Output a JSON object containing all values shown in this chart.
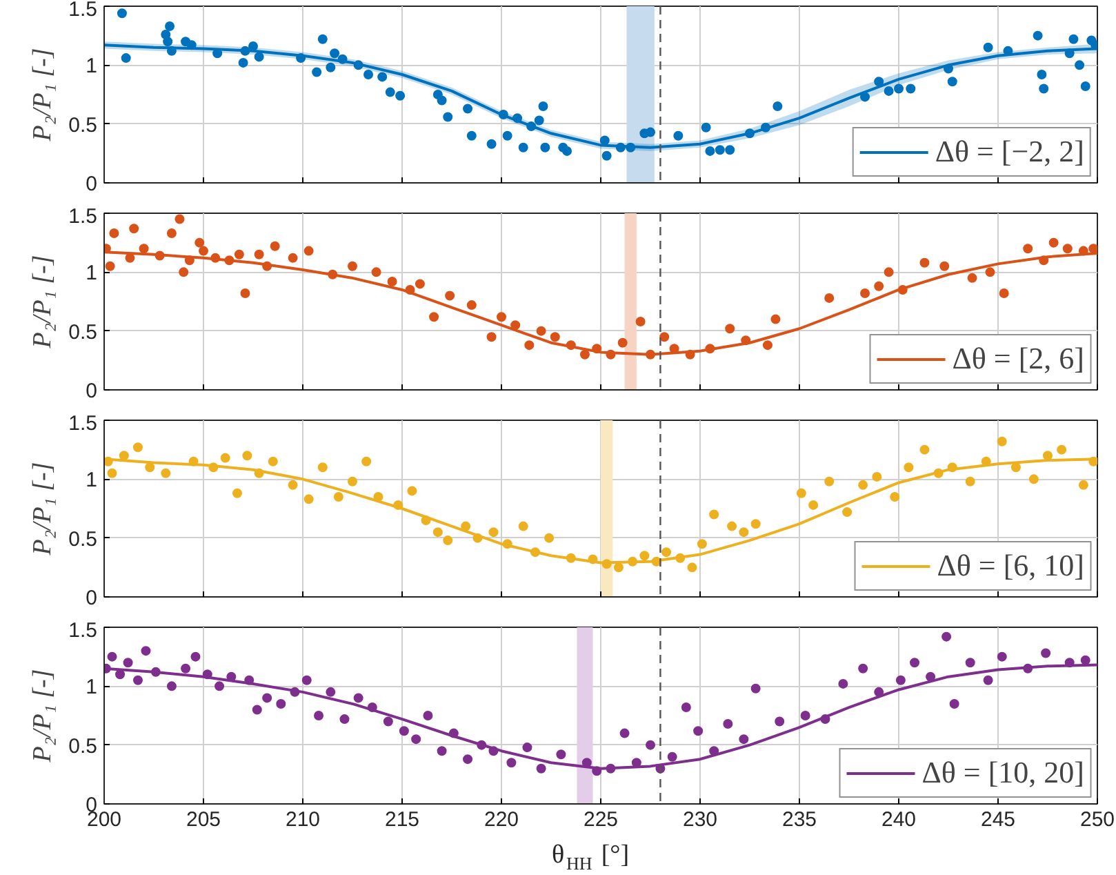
{
  "chart_data": [
    {
      "type": "scatter",
      "ylabel": "P₂/P₁ [-]",
      "xlim": [
        200,
        250
      ],
      "ylim": [
        0,
        1.5
      ],
      "xticks": [
        200,
        205,
        210,
        215,
        220,
        225,
        230,
        235,
        240,
        245,
        250
      ],
      "yticks": [
        0,
        0.5,
        1,
        1.5
      ],
      "grid": true,
      "legend": "bottom right",
      "tick_labels": "y",
      "marker": "circle",
      "series": [
        {
          "color": "#0072bd",
          "x": [
            200.9,
            201.1,
            203.1,
            203.2,
            203.3,
            203.4,
            204.1,
            204.4,
            205.7,
            207,
            207.1,
            207.5,
            207.8,
            209.9,
            210.7,
            211,
            211.4,
            211.6,
            212,
            212.8,
            213.3,
            214,
            214.4,
            214.9,
            216.8,
            217,
            217.3,
            218.3,
            218.5,
            219.5,
            220.1,
            220.3,
            220.8,
            221.1,
            221.5,
            221.9,
            222.1,
            222.2,
            223.1,
            223.3,
            225.2,
            225.3,
            226,
            226.5,
            227.2,
            227.5,
            228.9,
            230.3,
            230.5,
            231,
            231.5,
            232.5,
            233.3,
            233.9,
            238.3,
            239,
            239.5,
            240,
            240.6,
            242.5,
            242.7,
            244.5,
            245.5,
            247,
            247.2,
            247.3,
            248.6,
            248.8,
            249.1,
            249.4,
            249.7,
            249.9
          ],
          "values": [
            1.44,
            1.06,
            1.26,
            1.2,
            1.33,
            1.12,
            1.2,
            1.17,
            1.1,
            1.02,
            1.12,
            1.16,
            1.07,
            1.06,
            0.94,
            1.22,
            0.98,
            1.1,
            1.05,
            1,
            0.92,
            0.9,
            0.77,
            0.74,
            0.75,
            0.7,
            0.56,
            0.63,
            0.4,
            0.33,
            0.58,
            0.4,
            0.55,
            0.3,
            0.48,
            0.53,
            0.65,
            0.3,
            0.3,
            0.27,
            0.36,
            0.23,
            0.3,
            0.3,
            0.42,
            0.43,
            0.4,
            0.47,
            0.27,
            0.28,
            0.28,
            0.42,
            0.47,
            0.65,
            0.73,
            0.86,
            0.78,
            0.8,
            0.8,
            0.97,
            0.86,
            1.15,
            1.12,
            1.25,
            0.92,
            0.8,
            1.1,
            1.22,
            1,
            0.82,
            1.21,
            1.17
          ]
        },
        {
          "type": "line",
          "name": "Δθ = [−2, 2]",
          "color": "#0072bd",
          "marker": "none",
          "x": [
            200,
            202.5,
            205,
            207.5,
            210,
            212.5,
            215,
            217.5,
            220,
            222.5,
            225,
            227.5,
            230,
            232.5,
            235,
            237.5,
            240,
            242.5,
            245,
            247.5,
            250
          ],
          "values": [
            1.17,
            1.15,
            1.14,
            1.12,
            1.08,
            1.02,
            0.92,
            0.78,
            0.58,
            0.42,
            0.32,
            0.3,
            0.33,
            0.42,
            0.55,
            0.72,
            0.88,
            1,
            1.08,
            1.12,
            1.14
          ],
          "lower": [
            1.14,
            1.12,
            1.11,
            1.09,
            1.05,
            0.99,
            0.89,
            0.75,
            0.55,
            0.39,
            0.29,
            0.27,
            0.3,
            0.38,
            0.49,
            0.65,
            0.83,
            0.96,
            1.05,
            1.09,
            1.1
          ],
          "upper": [
            1.2,
            1.18,
            1.17,
            1.15,
            1.11,
            1.05,
            0.95,
            0.81,
            0.61,
            0.45,
            0.35,
            0.33,
            0.36,
            0.46,
            0.61,
            0.79,
            0.93,
            1.04,
            1.11,
            1.15,
            1.18
          ]
        }
      ],
      "ref_lines": [
        {
          "axis": "x",
          "value": 228,
          "color": "#555555",
          "line_style": "dashed"
        }
      ],
      "bands": [
        {
          "axis": "x",
          "from": 226.3,
          "to": 227.7,
          "color": "#c6dcee"
        }
      ]
    },
    {
      "type": "scatter",
      "ylabel": "P₂/P₁ [-]",
      "xlim": [
        200,
        250
      ],
      "ylim": [
        0,
        1.5
      ],
      "xticks": [
        200,
        205,
        210,
        215,
        220,
        225,
        230,
        235,
        240,
        245,
        250
      ],
      "yticks": [
        0,
        0.5,
        1,
        1.5
      ],
      "grid": true,
      "legend": "bottom right",
      "tick_labels": "y",
      "marker": "circle",
      "series": [
        {
          "color": "#d95319",
          "x": [
            200.1,
            200.3,
            200.5,
            201.3,
            201.5,
            202,
            202.8,
            203.4,
            203.8,
            204,
            204.3,
            204.8,
            205,
            205.6,
            206.3,
            206.8,
            207.1,
            207.8,
            208.2,
            208.6,
            209.5,
            210.3,
            211.5,
            212.5,
            213.7,
            214.5,
            215.4,
            215.9,
            216.6,
            217.4,
            218.5,
            219.5,
            220,
            220.7,
            221.4,
            222,
            222.7,
            223.5,
            224.2,
            224.8,
            225.5,
            226.1,
            227,
            227.5,
            228.2,
            228.7,
            229.5,
            230.5,
            231.5,
            232.3,
            233.4,
            233.8,
            236.5,
            238.3,
            239,
            239.5,
            240.2,
            241.3,
            242.3,
            243.7,
            244.6,
            245.3,
            246.5,
            247.3,
            247.8,
            248.5,
            249.3,
            249.8
          ],
          "values": [
            1.2,
            1.05,
            1.33,
            1.12,
            1.37,
            1.2,
            1.14,
            1.33,
            1.45,
            1,
            1.1,
            1.25,
            1.18,
            1.12,
            1.1,
            1.15,
            0.82,
            1.15,
            1.05,
            1.22,
            1.12,
            1.18,
            0.98,
            1.05,
            1,
            0.92,
            0.85,
            0.9,
            0.62,
            0.8,
            0.72,
            0.45,
            0.62,
            0.55,
            0.38,
            0.5,
            0.45,
            0.38,
            0.3,
            0.35,
            0.3,
            0.4,
            0.58,
            0.3,
            0.45,
            0.35,
            0.3,
            0.35,
            0.52,
            0.42,
            0.38,
            0.6,
            0.78,
            0.82,
            0.88,
            1,
            0.85,
            1.08,
            1.05,
            0.95,
            1,
            0.82,
            1.2,
            1.1,
            1.25,
            1.2,
            1.18,
            1.2
          ]
        },
        {
          "type": "line",
          "name": "Δθ = [2, 6]",
          "color": "#d95319",
          "marker": "none",
          "x": [
            200,
            202.5,
            205,
            207.5,
            210,
            212.5,
            215,
            217.5,
            220,
            222.5,
            225,
            227.5,
            230,
            232.5,
            235,
            237.5,
            240,
            242.5,
            245,
            247.5,
            250
          ],
          "values": [
            1.17,
            1.15,
            1.12,
            1.08,
            1.02,
            0.95,
            0.85,
            0.7,
            0.55,
            0.4,
            0.32,
            0.3,
            0.33,
            0.4,
            0.52,
            0.68,
            0.85,
            0.98,
            1.07,
            1.13,
            1.16
          ]
        }
      ],
      "ref_lines": [
        {
          "axis": "x",
          "value": 228,
          "color": "#555555",
          "line_style": "dashed"
        }
      ],
      "bands": [
        {
          "axis": "x",
          "from": 226.2,
          "to": 226.8,
          "color": "#f6d3c3"
        }
      ]
    },
    {
      "type": "scatter",
      "ylabel": "P₂/P₁ [-]",
      "xlim": [
        200,
        250
      ],
      "ylim": [
        0,
        1.5
      ],
      "xticks": [
        200,
        205,
        210,
        215,
        220,
        225,
        230,
        235,
        240,
        245,
        250
      ],
      "yticks": [
        0,
        0.5,
        1,
        1.5
      ],
      "grid": true,
      "legend": "bottom right",
      "tick_labels": "y",
      "marker": "circle",
      "series": [
        {
          "color": "#edb120",
          "x": [
            200.2,
            200.4,
            201,
            201.7,
            202.3,
            203.1,
            204.5,
            205.5,
            206.1,
            206.7,
            207.2,
            207.8,
            208.5,
            209.5,
            210.3,
            211,
            211.8,
            212.5,
            213.2,
            213.8,
            214.8,
            215.5,
            216.2,
            216.8,
            217.3,
            218.2,
            218.8,
            219.6,
            220.3,
            221.1,
            221.7,
            222.4,
            223.5,
            224.6,
            225.3,
            225.9,
            226.6,
            227.2,
            227.8,
            228.3,
            229,
            229.6,
            230.1,
            230.7,
            231.6,
            232.2,
            232.8,
            235.1,
            235.7,
            236.5,
            237.4,
            238.2,
            238.9,
            239.8,
            240.5,
            241.3,
            242,
            242.7,
            243.6,
            244.4,
            245.2,
            245.9,
            246.8,
            247.5,
            248.2,
            249.3,
            249.8
          ],
          "values": [
            1.15,
            1.05,
            1.2,
            1.27,
            1.1,
            1.05,
            1.15,
            1.1,
            1.18,
            0.88,
            1.2,
            1.05,
            1.15,
            0.95,
            0.83,
            1.1,
            0.85,
            0.98,
            1.15,
            0.85,
            0.78,
            0.9,
            0.65,
            0.55,
            0.48,
            0.6,
            0.5,
            0.55,
            0.45,
            0.6,
            0.38,
            0.5,
            0.33,
            0.32,
            0.28,
            0.25,
            0.3,
            0.35,
            0.3,
            0.38,
            0.33,
            0.25,
            0.45,
            0.7,
            0.6,
            0.55,
            0.62,
            0.88,
            0.78,
            0.98,
            0.72,
            0.95,
            1.02,
            0.85,
            1.1,
            1.25,
            1.05,
            1.1,
            0.98,
            1.15,
            1.32,
            1.1,
            1,
            1.2,
            1.25,
            0.95,
            1.15
          ]
        },
        {
          "type": "line",
          "name": "Δθ = [6, 10]",
          "color": "#edb120",
          "marker": "none",
          "x": [
            200,
            202.5,
            205,
            207.5,
            210,
            212.5,
            215,
            217.5,
            220,
            222.5,
            225,
            227.5,
            230,
            232.5,
            235,
            237.5,
            240,
            242.5,
            245,
            247.5,
            250
          ],
          "values": [
            1.17,
            1.14,
            1.12,
            1.08,
            1,
            0.88,
            0.75,
            0.6,
            0.45,
            0.35,
            0.29,
            0.3,
            0.36,
            0.48,
            0.62,
            0.8,
            0.97,
            1.08,
            1.13,
            1.16,
            1.17
          ]
        }
      ],
      "ref_lines": [
        {
          "axis": "x",
          "value": 228,
          "color": "#555555",
          "line_style": "dashed"
        }
      ],
      "bands": [
        {
          "axis": "x",
          "from": 225,
          "to": 225.6,
          "color": "#fae8c0"
        }
      ]
    },
    {
      "type": "scatter",
      "ylabel": "P₂/P₁ [-]",
      "xlabel": "θ$_{HH}$ [°]",
      "xlim": [
        200,
        250
      ],
      "ylim": [
        0,
        1.5
      ],
      "xticks": [
        200,
        205,
        210,
        215,
        220,
        225,
        230,
        235,
        240,
        245,
        250
      ],
      "yticks": [
        0,
        0.5,
        1,
        1.5
      ],
      "grid": true,
      "legend": "bottom right",
      "marker": "circle",
      "series": [
        {
          "color": "#7e2f8e",
          "x": [
            200.1,
            200.4,
            200.8,
            201.2,
            201.7,
            202.1,
            202.6,
            203.4,
            204.1,
            204.6,
            205.2,
            205.8,
            206.4,
            207.3,
            207.7,
            208.2,
            208.9,
            209.6,
            210.2,
            210.8,
            211.4,
            212.1,
            212.8,
            213.5,
            214.3,
            215.1,
            215.7,
            216.3,
            217,
            217.6,
            218.3,
            219,
            219.6,
            220.5,
            221.3,
            222,
            223,
            224.3,
            224.8,
            225.5,
            226.2,
            226.8,
            227.5,
            228,
            228.6,
            229.3,
            229.9,
            230.7,
            231.4,
            232.2,
            232.8,
            234,
            235.3,
            236.3,
            237.2,
            238.2,
            239,
            240.1,
            240.8,
            241.6,
            242.4,
            242.8,
            243.6,
            244.5,
            245.2,
            246.5,
            247.4,
            248.6,
            249.4
          ],
          "values": [
            1.15,
            1.25,
            1.1,
            1.2,
            1.05,
            1.3,
            1.12,
            1,
            1.15,
            1.25,
            1.1,
            1,
            1.08,
            1.05,
            0.8,
            0.9,
            0.85,
            0.95,
            1.05,
            0.75,
            0.95,
            0.72,
            0.9,
            0.82,
            0.7,
            0.62,
            0.55,
            0.75,
            0.45,
            0.6,
            0.38,
            0.5,
            0.45,
            0.35,
            0.48,
            0.3,
            0.42,
            0.35,
            0.28,
            0.3,
            0.6,
            0.35,
            0.5,
            0.3,
            0.4,
            0.82,
            0.62,
            0.45,
            0.68,
            0.55,
            0.98,
            0.7,
            0.75,
            0.72,
            1.02,
            1.15,
            0.95,
            1.05,
            1.2,
            1.08,
            1.42,
            0.85,
            1.2,
            1.05,
            1.25,
            1.15,
            1.28,
            1.2,
            1.22
          ]
        },
        {
          "type": "line",
          "name": "Δθ = [10, 20]",
          "color": "#7e2f8e",
          "marker": "none",
          "x": [
            200,
            202.5,
            205,
            207.5,
            210,
            212.5,
            215,
            217.5,
            220,
            222.5,
            225,
            227.5,
            230,
            232.5,
            235,
            237.5,
            240,
            242.5,
            245,
            247.5,
            250
          ],
          "values": [
            1.15,
            1.12,
            1.08,
            1.02,
            0.95,
            0.85,
            0.72,
            0.58,
            0.45,
            0.35,
            0.3,
            0.32,
            0.38,
            0.5,
            0.65,
            0.82,
            0.97,
            1.08,
            1.14,
            1.17,
            1.18
          ]
        }
      ],
      "ref_lines": [
        {
          "axis": "x",
          "value": 228,
          "color": "#555555",
          "line_style": "dashed"
        }
      ],
      "bands": [
        {
          "axis": "x",
          "from": 223.8,
          "to": 224.6,
          "color": "#e3cde8"
        }
      ]
    }
  ]
}
